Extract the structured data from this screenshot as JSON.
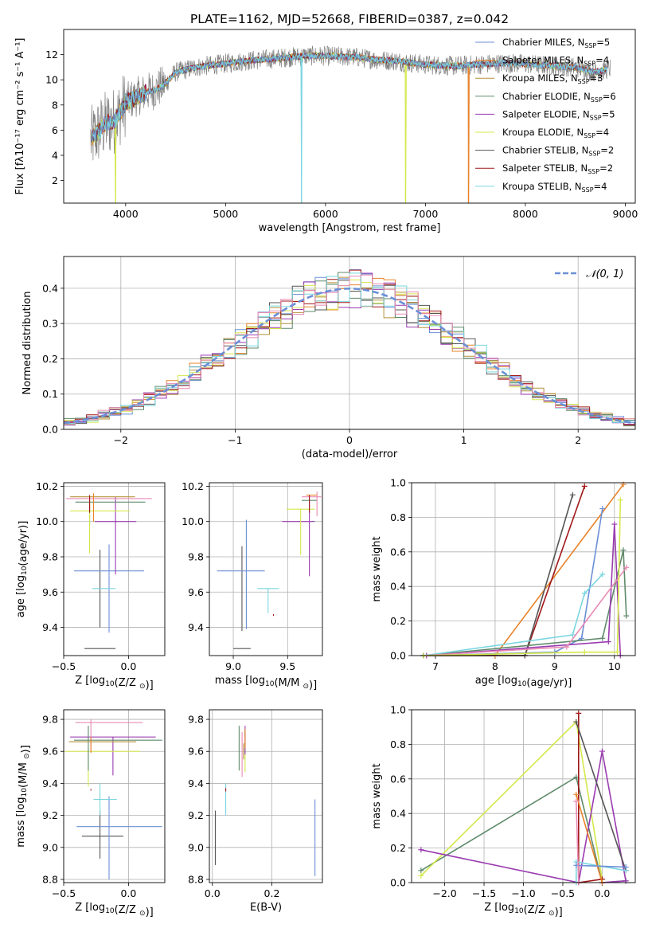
{
  "figure": {
    "title": "PLATE=1162, MJD=52668, FIBERID=0387, z=0.042"
  },
  "colors": {
    "series": [
      "#6b8fd6",
      "#e8832a",
      "#b5923a",
      "#5f8a6a",
      "#9a3bb0",
      "#d4e84a",
      "#555555",
      "#a01818",
      "#7ad6e0",
      "#e88ab4"
    ],
    "data": "#808080",
    "normal": "#6b8fd6"
  },
  "chart_data": [
    {
      "id": "spectrum",
      "type": "line",
      "xlabel": "wavelength [Angstrom, rest frame]",
      "ylabel": "Flux [fλ10⁻¹⁷ erg cm⁻² s⁻¹ A⁻¹]",
      "xlim": [
        3380,
        9100
      ],
      "ylim": [
        0.2,
        14
      ],
      "xticks": [
        4000,
        5000,
        6000,
        7000,
        8000,
        9000
      ],
      "yticks": [
        2,
        4,
        6,
        8,
        10,
        12
      ],
      "grid": false,
      "legend_position": "top-right",
      "series": [
        {
          "name": "Chabrier MILES, N",
          "sub": "SSP",
          "suffix": "=5"
        },
        {
          "name": "Salpeter MILES, N",
          "sub": "SSP",
          "suffix": "=4"
        },
        {
          "name": "Kroupa MILES, N",
          "sub": "SSP",
          "suffix": "=3"
        },
        {
          "name": "Chabrier ELODIE, N",
          "sub": "SSP",
          "suffix": "=6"
        },
        {
          "name": "Salpeter ELODIE, N",
          "sub": "SSP",
          "suffix": "=5"
        },
        {
          "name": "Kroupa ELODIE, N",
          "sub": "SSP",
          "suffix": "=4"
        },
        {
          "name": "Chabrier STELIB, N",
          "sub": "SSP",
          "suffix": "=2"
        },
        {
          "name": "Salpeter STELIB, N",
          "sub": "SSP",
          "suffix": "=2"
        },
        {
          "name": "Kroupa STELIB, N",
          "sub": "SSP",
          "suffix": "=4"
        }
      ],
      "continuum": {
        "x": [
          3650,
          3800,
          3900,
          4000,
          4100,
          4200,
          4300,
          4400,
          4500,
          4700,
          5000,
          5200,
          5500,
          5800,
          6000,
          6300,
          6500,
          6700,
          7000,
          7300,
          7500,
          7700,
          7900,
          8100,
          8300,
          8500,
          8700,
          8850
        ],
        "y": [
          5.2,
          6.5,
          6.8,
          8.2,
          8.6,
          9.0,
          9.2,
          9.7,
          10.6,
          11.0,
          11.3,
          11.5,
          11.7,
          11.9,
          11.9,
          11.8,
          11.6,
          11.5,
          11.2,
          11.1,
          11.2,
          11.3,
          11.3,
          11.2,
          11.1,
          11.0,
          10.6,
          10.9
        ]
      },
      "drops": [
        {
          "x": 3900,
          "series": 5
        },
        {
          "x": 5760,
          "series": 8
        },
        {
          "x": 6800,
          "series": 5
        },
        {
          "x": 7430,
          "series": 1
        }
      ]
    },
    {
      "id": "residuals",
      "type": "line",
      "xlabel": "(data-model)/error",
      "ylabel": "Normed distribution",
      "xlim": [
        -2.5,
        2.5
      ],
      "ylim": [
        0,
        0.49
      ],
      "xticks": [
        -2,
        -1,
        0,
        1,
        2
      ],
      "xtick_labels": [
        "−2",
        "−1",
        "0",
        "1",
        "2"
      ],
      "yticks": [
        0.0,
        0.1,
        0.2,
        0.3,
        0.4
      ],
      "yticks_fmt": [
        "0.0",
        "0.1",
        "0.2",
        "0.3",
        "0.4"
      ],
      "grid": true,
      "legend_position": "top-right",
      "reference": {
        "name": "𝒩(0, 1)",
        "mean": 0,
        "sigma": 1
      },
      "bin_width": 0.1
    },
    {
      "id": "age_vs_Z",
      "type": "scatter",
      "xlabel": "Z [log10(Z/Z⊙)]",
      "ylabel": "age  [log10(age/yr)]",
      "xlim": [
        -0.5,
        0.28
      ],
      "ylim": [
        9.24,
        10.22
      ],
      "xticks": [
        -0.5,
        0.0
      ],
      "xtick_labels": [
        "−0.5",
        "0.0"
      ],
      "yticks": [
        9.4,
        9.6,
        9.8,
        10.0,
        10.2
      ],
      "grid": true,
      "points": [
        {
          "x": -0.22,
          "xerr": 0.12,
          "y": 9.28,
          "yerr": 0.0,
          "c": 6
        },
        {
          "x": -0.22,
          "xerr": 0.0,
          "y": 9.62,
          "yerr": 0.22,
          "c": 6
        },
        {
          "x": -0.15,
          "xerr": 0.27,
          "y": 9.72,
          "yerr": 0.0,
          "c": 0
        },
        {
          "x": -0.15,
          "xerr": 0.0,
          "y": 9.62,
          "yerr": 0.25,
          "c": 0
        },
        {
          "x": -0.19,
          "xerr": 0.09,
          "y": 9.62,
          "yerr": 0.0,
          "c": 8
        },
        {
          "x": -0.1,
          "xerr": 0.16,
          "y": 10.0,
          "yerr": 0.0,
          "c": 4
        },
        {
          "x": -0.1,
          "xerr": 0.0,
          "y": 9.92,
          "yerr": 0.22,
          "c": 4
        },
        {
          "x": -0.15,
          "xerr": 0.33,
          "y": 10.13,
          "yerr": 0.0,
          "c": 9
        },
        {
          "x": -0.2,
          "xerr": 0.25,
          "y": 10.14,
          "yerr": 0.0,
          "c": 2
        },
        {
          "x": -0.14,
          "xerr": 0.27,
          "y": 10.11,
          "yerr": 0.0,
          "c": 3
        },
        {
          "x": -0.3,
          "xerr": 0.0,
          "y": 10.05,
          "yerr": 0.07,
          "c": 3
        },
        {
          "x": -0.3,
          "xerr": 0.0,
          "y": 9.97,
          "yerr": 0.15,
          "c": 5
        },
        {
          "x": -0.22,
          "xerr": 0.23,
          "y": 10.06,
          "yerr": 0.0,
          "c": 5
        },
        {
          "x": -0.27,
          "xerr": 0.0,
          "y": 10.08,
          "yerr": 0.08,
          "c": 1
        },
        {
          "x": -0.3,
          "xerr": 0.0,
          "y": 10.1,
          "yerr": 0.05,
          "c": 7
        }
      ]
    },
    {
      "id": "age_vs_mass",
      "type": "scatter",
      "xlabel": "mass [log10(M/M⊙)]",
      "ylabel": "",
      "xlim": [
        8.78,
        9.82
      ],
      "ylim": [
        9.24,
        10.22
      ],
      "xticks": [
        9.0,
        9.5
      ],
      "yticks": [
        9.4,
        9.6,
        9.8,
        10.0,
        10.2
      ],
      "grid": true,
      "points": [
        {
          "x": 9.08,
          "xerr": 0.08,
          "y": 9.28,
          "yerr": 0.0,
          "c": 6
        },
        {
          "x": 9.08,
          "xerr": 0.0,
          "y": 9.62,
          "yerr": 0.24,
          "c": 6
        },
        {
          "x": 9.12,
          "xerr": 0.0,
          "y": 9.7,
          "yerr": 0.31,
          "c": 0
        },
        {
          "x": 9.07,
          "xerr": 0.22,
          "y": 9.72,
          "yerr": 0.0,
          "c": 0
        },
        {
          "x": 9.32,
          "xerr": 0.1,
          "y": 9.62,
          "yerr": 0.0,
          "c": 8
        },
        {
          "x": 9.32,
          "xerr": 0.0,
          "y": 9.55,
          "yerr": 0.07,
          "c": 8
        },
        {
          "x": 9.37,
          "xerr": 0.0,
          "y": 9.47,
          "yerr": 0.005,
          "c": 7
        },
        {
          "x": 9.6,
          "xerr": 0.15,
          "y": 10.0,
          "yerr": 0.0,
          "c": 4
        },
        {
          "x": 9.7,
          "xerr": 0.0,
          "y": 9.91,
          "yerr": 0.22,
          "c": 4
        },
        {
          "x": 9.62,
          "xerr": 0.13,
          "y": 10.07,
          "yerr": 0.0,
          "c": 5
        },
        {
          "x": 9.62,
          "xerr": 0.0,
          "y": 9.94,
          "yerr": 0.13,
          "c": 5
        },
        {
          "x": 9.7,
          "xerr": 0.07,
          "y": 10.12,
          "yerr": 0.0,
          "c": 3
        },
        {
          "x": 9.72,
          "xerr": 0.09,
          "y": 10.14,
          "yerr": 0.0,
          "c": 9
        },
        {
          "x": 9.77,
          "xerr": 0.0,
          "y": 10.1,
          "yerr": 0.07,
          "c": 9
        },
        {
          "x": 9.72,
          "xerr": 0.05,
          "y": 10.15,
          "yerr": 0.0,
          "c": 1
        },
        {
          "x": 9.7,
          "xerr": 0.0,
          "y": 10.1,
          "yerr": 0.05,
          "c": 7
        }
      ]
    },
    {
      "id": "mass_weight_vs_age",
      "type": "line",
      "xlabel": "age  [log10(age/yr)]",
      "ylabel": "mass weight",
      "xlim": [
        6.6,
        10.35
      ],
      "ylim": [
        0.0,
        1.0
      ],
      "xticks": [
        7,
        8,
        9,
        10
      ],
      "yticks": [
        0.0,
        0.2,
        0.4,
        0.6,
        0.8,
        1.0
      ],
      "yticks_fmt": [
        "0.0",
        "0.2",
        "0.4",
        "0.6",
        "0.8",
        "1.0"
      ],
      "grid": true,
      "series": [
        {
          "c": 1,
          "x": [
            6.8,
            8.0,
            10.15
          ],
          "y": [
            0.0,
            0.0,
            0.99
          ]
        },
        {
          "c": 0,
          "x": [
            6.8,
            9.0,
            9.45,
            9.8
          ],
          "y": [
            0.0,
            0.02,
            0.1,
            0.85
          ]
        },
        {
          "c": 7,
          "x": [
            6.8,
            8.5,
            9.5
          ],
          "y": [
            0.0,
            0.0,
            0.98
          ]
        },
        {
          "c": 6,
          "x": [
            6.8,
            8.5,
            9.3
          ],
          "y": [
            0.0,
            0.0,
            0.93
          ]
        },
        {
          "c": 3,
          "x": [
            6.8,
            9.8,
            10.15,
            10.2
          ],
          "y": [
            0.0,
            0.1,
            0.61,
            0.23
          ]
        },
        {
          "c": 4,
          "x": [
            6.85,
            9.9,
            10.0,
            10.1
          ],
          "y": [
            0.0,
            0.08,
            0.76,
            0.0
          ]
        },
        {
          "c": 8,
          "x": [
            6.8,
            9.3,
            9.5,
            9.8
          ],
          "y": [
            0.0,
            0.12,
            0.36,
            0.47
          ]
        },
        {
          "c": 9,
          "x": [
            6.8,
            9.2,
            10.2
          ],
          "y": [
            0.0,
            0.05,
            0.51
          ]
        },
        {
          "c": 5,
          "x": [
            6.8,
            9.5,
            10.05,
            10.1
          ],
          "y": [
            0.0,
            0.02,
            0.02,
            0.9
          ]
        }
      ]
    },
    {
      "id": "mass_vs_Z",
      "type": "scatter",
      "xlabel": "Z [log10(Z/Z⊙)]",
      "ylabel": "mass [log10(M/M⊙)]",
      "xlim": [
        -0.5,
        0.28
      ],
      "ylim": [
        8.78,
        9.86
      ],
      "xticks": [
        -0.5,
        0.0
      ],
      "xtick_labels": [
        "−0.5",
        "0.0"
      ],
      "yticks": [
        8.8,
        9.0,
        9.2,
        9.4,
        9.6,
        9.8
      ],
      "grid": true,
      "points": [
        {
          "x": -0.2,
          "xerr": 0.16,
          "y": 9.07,
          "yerr": 0.0,
          "c": 6
        },
        {
          "x": -0.22,
          "xerr": 0.0,
          "y": 9.08,
          "yerr": 0.15,
          "c": 6
        },
        {
          "x": -0.15,
          "xerr": 0.0,
          "y": 9.06,
          "yerr": 0.26,
          "c": 0
        },
        {
          "x": -0.07,
          "xerr": 0.33,
          "y": 9.13,
          "yerr": 0.0,
          "c": 0
        },
        {
          "x": -0.18,
          "xerr": 0.09,
          "y": 9.3,
          "yerr": 0.0,
          "c": 8
        },
        {
          "x": -0.22,
          "xerr": 0.0,
          "y": 9.3,
          "yerr": 0.1,
          "c": 8
        },
        {
          "x": -0.29,
          "xerr": 0.0,
          "y": 9.36,
          "yerr": 0.005,
          "c": 7
        },
        {
          "x": -0.12,
          "xerr": 0.33,
          "y": 9.69,
          "yerr": 0.0,
          "c": 4
        },
        {
          "x": -0.12,
          "xerr": 0.0,
          "y": 9.57,
          "yerr": 0.12,
          "c": 4
        },
        {
          "x": -0.2,
          "xerr": 0.29,
          "y": 9.6,
          "yerr": 0.0,
          "c": 5
        },
        {
          "x": -0.31,
          "xerr": 0.0,
          "y": 9.5,
          "yerr": 0.12,
          "c": 5
        },
        {
          "x": -0.08,
          "xerr": 0.34,
          "y": 9.67,
          "yerr": 0.0,
          "c": 3
        },
        {
          "x": -0.31,
          "xerr": 0.0,
          "y": 9.62,
          "yerr": 0.14,
          "c": 3
        },
        {
          "x": -0.2,
          "xerr": 0.26,
          "y": 9.66,
          "yerr": 0.0,
          "c": 2
        },
        {
          "x": -0.15,
          "xerr": 0.26,
          "y": 9.78,
          "yerr": 0.0,
          "c": 9
        },
        {
          "x": -0.29,
          "xerr": 0.0,
          "y": 9.7,
          "yerr": 0.1,
          "c": 9
        },
        {
          "x": -0.29,
          "xerr": 0.0,
          "y": 9.64,
          "yerr": 0.05,
          "c": 1
        }
      ]
    },
    {
      "id": "mass_vs_ebv",
      "type": "scatter",
      "xlabel": "E(B-V)",
      "ylabel": "",
      "xlim": [
        -0.01,
        0.37
      ],
      "ylim": [
        8.78,
        9.86
      ],
      "xticks": [
        0.0,
        0.2
      ],
      "yticks": [
        8.8,
        9.0,
        9.2,
        9.4,
        9.6,
        9.8
      ],
      "grid": true,
      "points": [
        {
          "x": 0.01,
          "xerr": 0.0,
          "y": 9.06,
          "yerr": 0.17,
          "c": 6
        },
        {
          "x": 0.345,
          "xerr": 0.0,
          "y": 9.06,
          "yerr": 0.24,
          "c": 0
        },
        {
          "x": 0.045,
          "xerr": 0.0,
          "y": 9.3,
          "yerr": 0.1,
          "c": 8
        },
        {
          "x": 0.045,
          "xerr": 0.0,
          "y": 9.36,
          "yerr": 0.01,
          "c": 7
        },
        {
          "x": 0.09,
          "xerr": 0.0,
          "y": 9.62,
          "yerr": 0.14,
          "c": 3
        },
        {
          "x": 0.1,
          "xerr": 0.0,
          "y": 9.58,
          "yerr": 0.14,
          "c": 9
        },
        {
          "x": 0.11,
          "xerr": 0.0,
          "y": 9.6,
          "yerr": 0.13,
          "c": 5
        },
        {
          "x": 0.11,
          "xerr": 0.0,
          "y": 9.67,
          "yerr": 0.09,
          "c": 4
        },
        {
          "x": 0.11,
          "xerr": 0.0,
          "y": 9.68,
          "yerr": 0.06,
          "c": 1
        },
        {
          "x": 0.105,
          "xerr": 0.0,
          "y": 9.6,
          "yerr": 0.05,
          "c": 2
        }
      ]
    },
    {
      "id": "mass_weight_vs_Z",
      "type": "line",
      "xlabel": "Z [log10(Z/Z⊙)]",
      "ylabel": "mass weight",
      "xlim": [
        -2.42,
        0.42
      ],
      "ylim": [
        0.0,
        1.0
      ],
      "xticks": [
        -2.0,
        -1.5,
        -1.0,
        -0.5,
        0.0
      ],
      "xtick_labels": [
        "−2.0",
        "−1.5",
        "−1.0",
        "−0.5",
        "0.0"
      ],
      "yticks": [
        0.0,
        0.2,
        0.4,
        0.6,
        0.8,
        1.0
      ],
      "yticks_fmt": [
        "0.0",
        "0.2",
        "0.4",
        "0.6",
        "0.8",
        "1.0"
      ],
      "grid": true,
      "series": [
        {
          "c": 3,
          "x": [
            -2.3,
            -0.33,
            0.0,
            0.3
          ],
          "y": [
            0.07,
            0.61,
            0.0,
            0.01
          ]
        },
        {
          "c": 5,
          "x": [
            -2.3,
            -0.33,
            0.0
          ],
          "y": [
            0.04,
            0.93,
            0.02
          ]
        },
        {
          "c": 4,
          "x": [
            -2.3,
            -0.3,
            0.0,
            0.3,
            0.0
          ],
          "y": [
            0.19,
            0.0,
            0.76,
            0.01,
            0.0
          ]
        },
        {
          "c": 7,
          "x": [
            -0.3,
            -0.3,
            0.0
          ],
          "y": [
            0.98,
            0.0,
            0.02
          ]
        },
        {
          "c": 6,
          "x": [
            -0.33,
            0.3
          ],
          "y": [
            0.93,
            0.07
          ]
        },
        {
          "c": 8,
          "x": [
            -0.33,
            -0.33,
            0.3
          ],
          "y": [
            0.0,
            0.12,
            0.07
          ]
        },
        {
          "c": 1,
          "x": [
            -0.33,
            0.0
          ],
          "y": [
            0.51,
            0.0
          ]
        },
        {
          "c": 0,
          "x": [
            -0.33,
            0.3
          ],
          "y": [
            0.1,
            0.09
          ]
        },
        {
          "c": 9,
          "x": [
            -0.33,
            -0.3
          ],
          "y": [
            0.47,
            0.0
          ]
        }
      ]
    }
  ]
}
